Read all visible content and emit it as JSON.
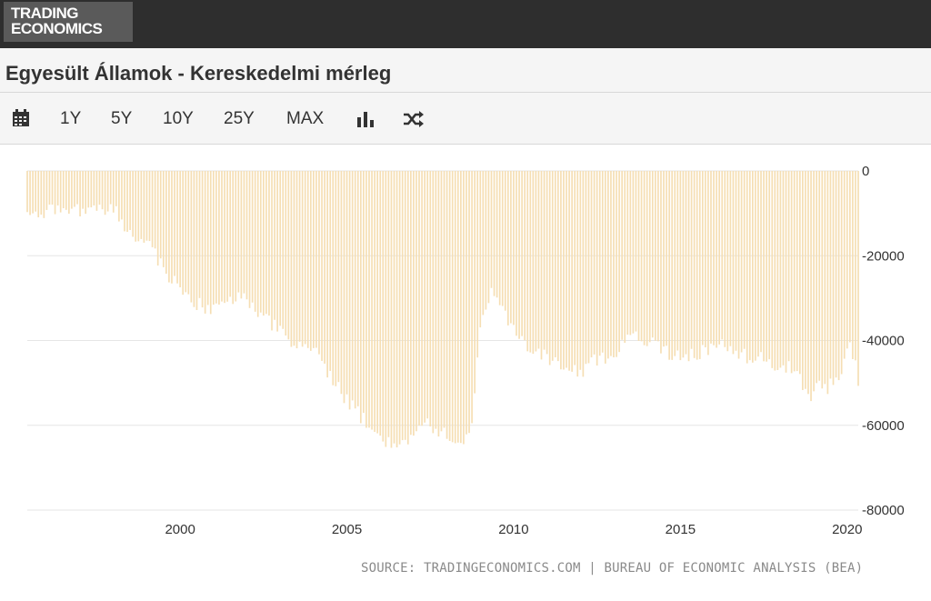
{
  "brand": {
    "line1": "TRADING",
    "line2": "ECONOMICS"
  },
  "title": "Egyesült Államok - Kereskedelmi mérleg",
  "toolbar": {
    "items": [
      {
        "icon": "calendar-icon"
      },
      {
        "label": "1Y"
      },
      {
        "label": "5Y"
      },
      {
        "label": "10Y"
      },
      {
        "label": "25Y"
      },
      {
        "label": "MAX"
      },
      {
        "icon": "bar-chart-icon"
      },
      {
        "icon": "shuffle-icon"
      }
    ]
  },
  "source": "SOURCE: TRADINGECONOMICS.COM | BUREAU OF ECONOMIC ANALYSIS (BEA)",
  "colors": {
    "bar": "#f5deb3",
    "grid": "#e6e6e6",
    "axis_text": "#333333"
  },
  "chart_data": {
    "type": "bar",
    "title": "",
    "xlabel": "",
    "ylabel": "",
    "frequency": "monthly",
    "x_start": "1995-06",
    "x_end": "2020-05",
    "x_ticks": [
      "2000",
      "2005",
      "2010",
      "2015",
      "2020"
    ],
    "y_ticks": [
      0,
      -20000,
      -40000,
      -60000,
      -80000
    ],
    "ylim": [
      -80000,
      0
    ],
    "y_axis_position": "right",
    "grid": true,
    "legend": "none",
    "anchors": [
      [
        "1995-06",
        -11000
      ],
      [
        "1996-06",
        -9000
      ],
      [
        "1997-06",
        -9500
      ],
      [
        "1998-01",
        -9000
      ],
      [
        "1998-06",
        -14000
      ],
      [
        "1999-01",
        -17000
      ],
      [
        "1999-06",
        -22000
      ],
      [
        "2000-01",
        -28000
      ],
      [
        "2000-06",
        -31000
      ],
      [
        "2001-01",
        -33000
      ],
      [
        "2001-06",
        -30000
      ],
      [
        "2002-01",
        -30000
      ],
      [
        "2002-06",
        -34000
      ],
      [
        "2003-01",
        -38000
      ],
      [
        "2003-06",
        -42000
      ],
      [
        "2004-01",
        -42000
      ],
      [
        "2004-06",
        -48000
      ],
      [
        "2005-01",
        -54000
      ],
      [
        "2005-06",
        -58000
      ],
      [
        "2006-01",
        -63000
      ],
      [
        "2006-06",
        -65000
      ],
      [
        "2007-01",
        -62000
      ],
      [
        "2007-06",
        -60000
      ],
      [
        "2008-01",
        -62000
      ],
      [
        "2008-06",
        -64000
      ],
      [
        "2008-10",
        -60000
      ],
      [
        "2009-01",
        -37000
      ],
      [
        "2009-05",
        -28000
      ],
      [
        "2009-10",
        -34000
      ],
      [
        "2010-06",
        -41000
      ],
      [
        "2011-01",
        -44000
      ],
      [
        "2011-06",
        -46000
      ],
      [
        "2012-01",
        -48000
      ],
      [
        "2012-06",
        -45000
      ],
      [
        "2013-01",
        -43000
      ],
      [
        "2013-06",
        -39000
      ],
      [
        "2014-01",
        -40000
      ],
      [
        "2014-06",
        -42000
      ],
      [
        "2015-01",
        -44000
      ],
      [
        "2015-06",
        -43000
      ],
      [
        "2016-01",
        -42000
      ],
      [
        "2016-06",
        -41000
      ],
      [
        "2017-01",
        -44000
      ],
      [
        "2017-06",
        -43000
      ],
      [
        "2018-01",
        -47000
      ],
      [
        "2018-06",
        -46000
      ],
      [
        "2018-12",
        -54000
      ],
      [
        "2019-03",
        -50000
      ],
      [
        "2019-06",
        -51000
      ],
      [
        "2019-09",
        -50000
      ],
      [
        "2019-12",
        -45000
      ],
      [
        "2020-02",
        -39000
      ],
      [
        "2020-05",
        -50000
      ]
    ]
  }
}
